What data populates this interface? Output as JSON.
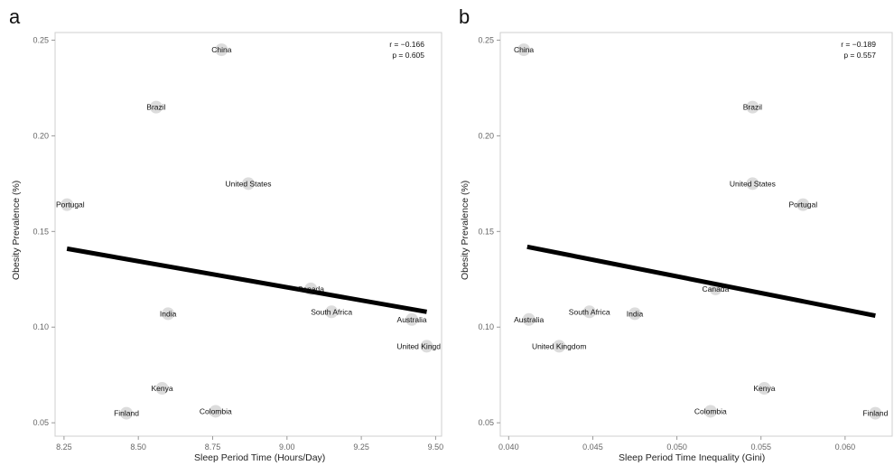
{
  "chart_data": [
    {
      "type": "scatter",
      "panel_label": "a",
      "xlabel": "Sleep Period Time (Hours/Day)",
      "ylabel": "Obesity Prevalence (%)",
      "xlim": [
        8.22,
        9.52
      ],
      "ylim": [
        0.043,
        0.254
      ],
      "xticks": [
        8.25,
        8.5,
        8.75,
        9.0,
        9.25,
        9.5
      ],
      "xtick_labels": [
        "8.25",
        "8.50",
        "8.75",
        "9.00",
        "9.25",
        "9.50"
      ],
      "yticks": [
        0.05,
        0.1,
        0.15,
        0.2,
        0.25
      ],
      "ytick_labels": [
        "0.05",
        "0.10",
        "0.15",
        "0.20",
        "0.25"
      ],
      "stats": {
        "r": "r = −0.166",
        "p": "p = 0.605"
      },
      "points": [
        {
          "label": "China",
          "x": 8.78,
          "y": 0.245
        },
        {
          "label": "Brazil",
          "x": 8.56,
          "y": 0.215
        },
        {
          "label": "United States",
          "x": 8.87,
          "y": 0.175
        },
        {
          "label": "Portugal",
          "x": 8.26,
          "y": 0.164
        },
        {
          "label": "Canada",
          "x": 9.08,
          "y": 0.12
        },
        {
          "label": "South Africa",
          "x": 9.15,
          "y": 0.108
        },
        {
          "label": "India",
          "x": 8.6,
          "y": 0.107
        },
        {
          "label": "Australia",
          "x": 9.42,
          "y": 0.104
        },
        {
          "label": "United Kingd",
          "x": 9.47,
          "y": 0.09
        },
        {
          "label": "Kenya",
          "x": 8.58,
          "y": 0.068
        },
        {
          "label": "Colombia",
          "x": 8.76,
          "y": 0.056
        },
        {
          "label": "Finland",
          "x": 8.46,
          "y": 0.055
        }
      ],
      "fit_line": {
        "x": [
          8.26,
          9.47
        ],
        "y": [
          0.141,
          0.108
        ]
      }
    },
    {
      "type": "scatter",
      "panel_label": "b",
      "xlabel": "Sleep Period Time Inequality (Gini)",
      "ylabel": "Obesity Prevalence (%)",
      "xlim": [
        0.0395,
        0.0628
      ],
      "ylim": [
        0.043,
        0.254
      ],
      "xticks": [
        0.04,
        0.045,
        0.05,
        0.055,
        0.06
      ],
      "xtick_labels": [
        "0.040",
        "0.045",
        "0.050",
        "0.055",
        "0.060"
      ],
      "yticks": [
        0.05,
        0.1,
        0.15,
        0.2,
        0.25
      ],
      "ytick_labels": [
        "0.05",
        "0.10",
        "0.15",
        "0.20",
        "0.25"
      ],
      "stats": {
        "r": "r = −0.189",
        "p": "p = 0.557"
      },
      "points": [
        {
          "label": "China",
          "x": 0.0409,
          "y": 0.245
        },
        {
          "label": "Brazil",
          "x": 0.0545,
          "y": 0.215
        },
        {
          "label": "United States",
          "x": 0.0545,
          "y": 0.175
        },
        {
          "label": "Portugal",
          "x": 0.0575,
          "y": 0.164
        },
        {
          "label": "Canada",
          "x": 0.0523,
          "y": 0.12
        },
        {
          "label": "South Africa",
          "x": 0.0448,
          "y": 0.108
        },
        {
          "label": "India",
          "x": 0.0475,
          "y": 0.107
        },
        {
          "label": "Australia",
          "x": 0.0412,
          "y": 0.104
        },
        {
          "label": "United Kingdom",
          "x": 0.043,
          "y": 0.09
        },
        {
          "label": "Kenya",
          "x": 0.0552,
          "y": 0.068
        },
        {
          "label": "Colombia",
          "x": 0.052,
          "y": 0.056
        },
        {
          "label": "Finland",
          "x": 0.0618,
          "y": 0.055
        }
      ],
      "fit_line": {
        "x": [
          0.0411,
          0.0618
        ],
        "y": [
          0.142,
          0.106
        ]
      }
    }
  ]
}
